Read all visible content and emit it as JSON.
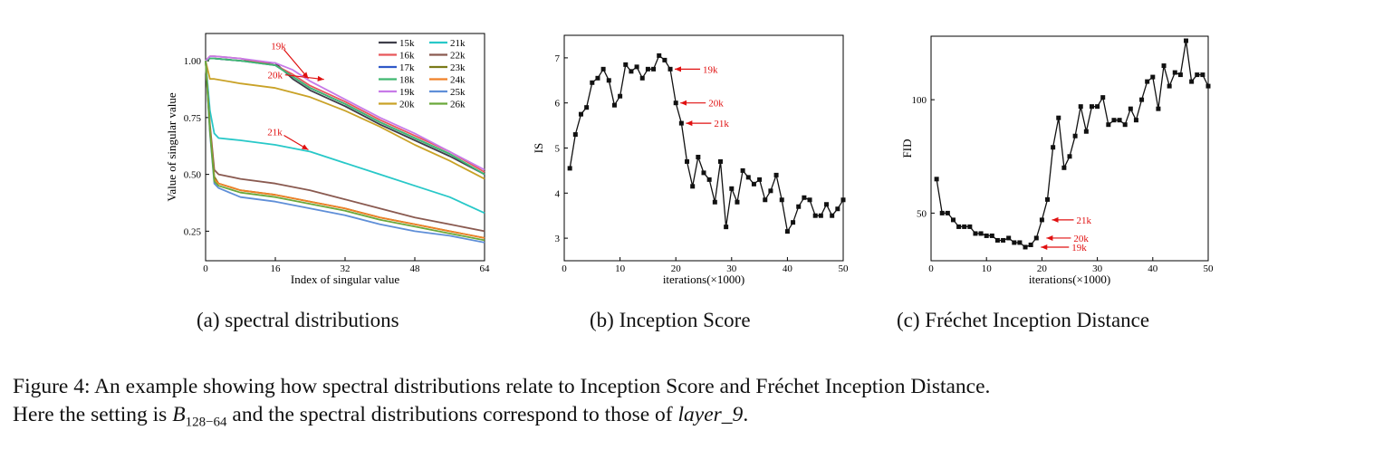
{
  "chart_data": [
    {
      "type": "line",
      "xlabel": "Index of singular value",
      "ylabel": "Value of singular value",
      "xlim": [
        0,
        64
      ],
      "ylim": [
        0.12,
        1.12
      ],
      "xticks": [
        0,
        16,
        32,
        48,
        64
      ],
      "yticks": [
        0.25,
        0.5,
        0.75,
        1.0
      ],
      "ytick_labels": [
        "0.25",
        "0.50",
        "0.75",
        "1.00"
      ],
      "legend_position": "top-right",
      "series": [
        {
          "name": "15k",
          "color": "#3f3f4a",
          "x": [
            0,
            1,
            2,
            8,
            16,
            20,
            24,
            32,
            40,
            48,
            56,
            64
          ],
          "y": [
            1.0,
            1.01,
            1.01,
            1.0,
            0.99,
            0.92,
            0.87,
            0.8,
            0.72,
            0.65,
            0.58,
            0.5
          ]
        },
        {
          "name": "16k",
          "color": "#e8575a",
          "x": [
            0,
            1,
            2,
            8,
            16,
            20,
            24,
            32,
            40,
            48,
            56,
            64
          ],
          "y": [
            1.0,
            1.02,
            1.02,
            1.01,
            0.98,
            0.94,
            0.89,
            0.82,
            0.74,
            0.67,
            0.6,
            0.51
          ]
        },
        {
          "name": "17k",
          "color": "#2f58c8",
          "x": [
            0,
            1,
            2,
            8,
            16,
            20,
            24,
            32,
            40,
            48,
            56,
            64
          ],
          "y": [
            1.0,
            1.01,
            1.01,
            1.0,
            0.98,
            0.93,
            0.88,
            0.81,
            0.73,
            0.66,
            0.59,
            0.5
          ]
        },
        {
          "name": "18k",
          "color": "#40b870",
          "x": [
            0,
            1,
            2,
            8,
            16,
            20,
            24,
            32,
            40,
            48,
            56,
            64
          ],
          "y": [
            1.0,
            1.01,
            1.01,
            1.0,
            0.98,
            0.93,
            0.88,
            0.81,
            0.73,
            0.66,
            0.59,
            0.5
          ]
        },
        {
          "name": "19k",
          "color": "#c77ae8",
          "x": [
            0,
            1,
            2,
            8,
            16,
            20,
            24,
            32,
            40,
            48,
            56,
            64
          ],
          "y": [
            1.0,
            1.02,
            1.02,
            1.01,
            0.99,
            0.96,
            0.91,
            0.83,
            0.75,
            0.68,
            0.6,
            0.52
          ]
        },
        {
          "name": "20k",
          "color": "#c9a227",
          "x": [
            0,
            1,
            2,
            8,
            16,
            20,
            24,
            32,
            40,
            48,
            56,
            64
          ],
          "y": [
            1.0,
            0.92,
            0.92,
            0.9,
            0.88,
            0.86,
            0.84,
            0.78,
            0.71,
            0.63,
            0.56,
            0.48
          ]
        },
        {
          "name": "21k",
          "color": "#28c8c8",
          "x": [
            0,
            1,
            2,
            3,
            8,
            16,
            24,
            32,
            40,
            48,
            56,
            64
          ],
          "y": [
            1.0,
            0.78,
            0.68,
            0.66,
            0.65,
            0.63,
            0.6,
            0.55,
            0.5,
            0.45,
            0.4,
            0.33
          ]
        },
        {
          "name": "22k",
          "color": "#8a5a50",
          "x": [
            0,
            1,
            2,
            3,
            8,
            16,
            24,
            32,
            40,
            48,
            56,
            64
          ],
          "y": [
            1.0,
            0.72,
            0.52,
            0.5,
            0.48,
            0.46,
            0.43,
            0.39,
            0.35,
            0.31,
            0.28,
            0.25
          ]
        },
        {
          "name": "23k",
          "color": "#7a7a18",
          "x": [
            0,
            1,
            2,
            3,
            8,
            16,
            24,
            32,
            40,
            48,
            56,
            64
          ],
          "y": [
            1.0,
            0.7,
            0.49,
            0.46,
            0.43,
            0.41,
            0.38,
            0.35,
            0.31,
            0.28,
            0.25,
            0.22
          ]
        },
        {
          "name": "24k",
          "color": "#f08028",
          "x": [
            0,
            1,
            2,
            3,
            8,
            16,
            24,
            32,
            40,
            48,
            56,
            64
          ],
          "y": [
            1.0,
            0.7,
            0.48,
            0.46,
            0.43,
            0.41,
            0.38,
            0.35,
            0.31,
            0.28,
            0.25,
            0.22
          ]
        },
        {
          "name": "25k",
          "color": "#5f8fd8",
          "x": [
            0,
            1,
            2,
            3,
            8,
            16,
            24,
            32,
            40,
            48,
            56,
            64
          ],
          "y": [
            1.0,
            0.68,
            0.46,
            0.44,
            0.4,
            0.38,
            0.35,
            0.32,
            0.28,
            0.25,
            0.23,
            0.2
          ]
        },
        {
          "name": "26k",
          "color": "#6aa83a",
          "x": [
            0,
            1,
            2,
            3,
            8,
            16,
            24,
            32,
            40,
            48,
            56,
            64
          ],
          "y": [
            1.0,
            0.69,
            0.47,
            0.45,
            0.42,
            0.4,
            0.37,
            0.34,
            0.3,
            0.27,
            0.24,
            0.21
          ]
        }
      ],
      "annotations": [
        {
          "text": "19k",
          "x": 24,
          "y": 0.91
        },
        {
          "text": "20k",
          "x": 28,
          "y": 0.91
        },
        {
          "text": "21k",
          "x": 24,
          "y": 0.6
        }
      ]
    },
    {
      "type": "line",
      "xlabel": "iterations(×1000)",
      "ylabel": "IS",
      "xlim": [
        0,
        50
      ],
      "ylim": [
        2.5,
        7.5
      ],
      "xticks": [
        0,
        10,
        20,
        30,
        40,
        50
      ],
      "yticks": [
        3,
        4,
        5,
        6,
        7
      ],
      "series": [
        {
          "name": "IS",
          "color": "#111111",
          "x": [
            1,
            2,
            3,
            4,
            5,
            6,
            7,
            8,
            9,
            10,
            11,
            12,
            13,
            14,
            15,
            16,
            17,
            18,
            19,
            20,
            21,
            22,
            23,
            24,
            25,
            26,
            27,
            28,
            29,
            30,
            31,
            32,
            33,
            34,
            35,
            36,
            37,
            38,
            39,
            40,
            41,
            42,
            43,
            44,
            45,
            46,
            47,
            48,
            49,
            50
          ],
          "y": [
            4.55,
            5.3,
            5.75,
            5.9,
            6.45,
            6.55,
            6.75,
            6.5,
            5.95,
            6.15,
            6.85,
            6.7,
            6.8,
            6.55,
            6.75,
            6.75,
            7.05,
            6.95,
            6.75,
            6.0,
            5.55,
            4.7,
            4.15,
            4.8,
            4.45,
            4.3,
            3.8,
            4.7,
            3.25,
            4.1,
            3.8,
            4.5,
            4.35,
            4.2,
            4.3,
            3.85,
            4.05,
            4.4,
            3.85,
            3.15,
            3.35,
            3.7,
            3.9,
            3.85,
            3.5,
            3.5,
            3.75,
            3.5,
            3.65,
            3.85
          ]
        }
      ],
      "annotations": [
        {
          "text": "19k",
          "x": 19,
          "y": 6.75
        },
        {
          "text": "20k",
          "x": 20,
          "y": 6.0
        },
        {
          "text": "21k",
          "x": 21,
          "y": 5.55
        }
      ]
    },
    {
      "type": "line",
      "xlabel": "iterations(×1000)",
      "ylabel": "FID",
      "xlim": [
        0,
        50
      ],
      "ylim": [
        29,
        128
      ],
      "xticks": [
        0,
        10,
        20,
        30,
        40,
        50
      ],
      "yticks": [
        50,
        100
      ],
      "series": [
        {
          "name": "FID",
          "color": "#111111",
          "x": [
            1,
            2,
            3,
            4,
            5,
            6,
            7,
            8,
            9,
            10,
            11,
            12,
            13,
            14,
            15,
            16,
            17,
            18,
            19,
            20,
            21,
            22,
            23,
            24,
            25,
            26,
            27,
            28,
            29,
            30,
            31,
            32,
            33,
            34,
            35,
            36,
            37,
            38,
            39,
            40,
            41,
            42,
            43,
            44,
            45,
            46,
            47,
            48,
            49,
            50
          ],
          "y": [
            65,
            50,
            50,
            47,
            44,
            44,
            44,
            41,
            41,
            40,
            40,
            38,
            38,
            39,
            37,
            37,
            35,
            36,
            39,
            47,
            56,
            79,
            92,
            70,
            75,
            84,
            97,
            86,
            97,
            97,
            101,
            89,
            91,
            91,
            89,
            96,
            91,
            100,
            108,
            110,
            96,
            115,
            106,
            112,
            111,
            126,
            108,
            111,
            111,
            106
          ]
        }
      ],
      "annotations": [
        {
          "text": "21k",
          "x": 21,
          "y": 47
        },
        {
          "text": "20k",
          "x": 20,
          "y": 39
        },
        {
          "text": "19k",
          "x": 19,
          "y": 35
        }
      ]
    }
  ],
  "subcaptions": {
    "a": "(a) spectral distributions",
    "b": "(b) Inception Score",
    "c": "(c) Fréchet Inception Distance"
  },
  "caption": {
    "line1": "Figure 4: An example showing how spectral distributions relate to Inception Score and Fréchet Inception Distance.",
    "line2_before": "Here the setting is ",
    "math_base": "B",
    "math_sub": "128−64",
    "line2_middle": " and the spectral distributions correspond to those of ",
    "math_layer": "layer_9",
    "line2_end": "."
  }
}
